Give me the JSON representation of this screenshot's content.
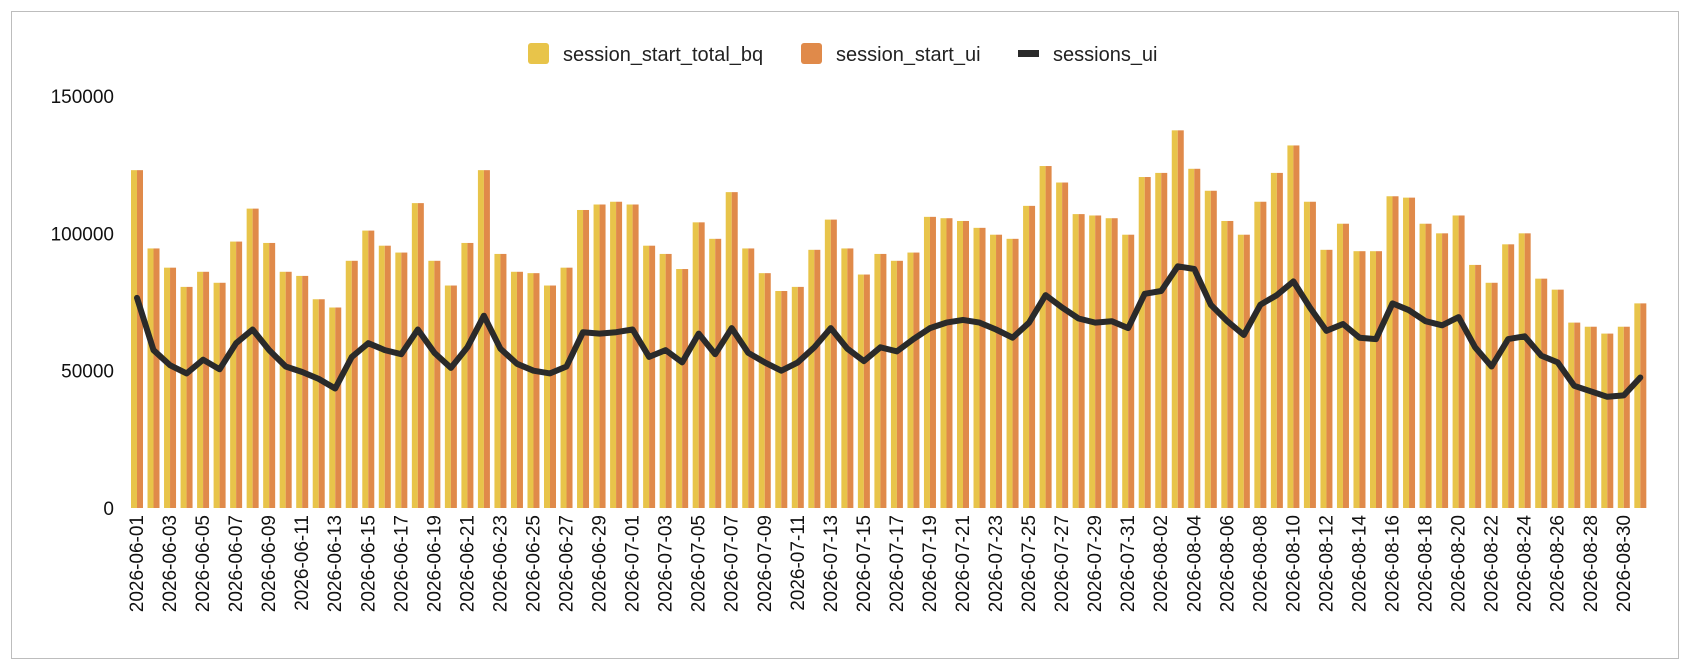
{
  "chart_data": {
    "type": "bar",
    "title": "",
    "xlabel": "",
    "ylabel": "",
    "ylim": [
      0,
      150000
    ],
    "yticks": [
      0,
      50000,
      100000,
      150000
    ],
    "grid": false,
    "legend_position": "top-center",
    "categories": [
      "2026-06-01",
      "2026-06-02",
      "2026-06-03",
      "2026-06-04",
      "2026-06-05",
      "2026-06-06",
      "2026-06-07",
      "2026-06-08",
      "2026-06-09",
      "2026-06-10",
      "2026-06-11",
      "2026-06-12",
      "2026-06-13",
      "2026-06-14",
      "2026-06-15",
      "2026-06-16",
      "2026-06-17",
      "2026-06-18",
      "2026-06-19",
      "2026-06-20",
      "2026-06-21",
      "2026-06-22",
      "2026-06-23",
      "2026-06-24",
      "2026-06-25",
      "2026-06-26",
      "2026-06-27",
      "2026-06-28",
      "2026-06-29",
      "2026-06-30",
      "2026-07-01",
      "2026-07-02",
      "2026-07-03",
      "2026-07-04",
      "2026-07-05",
      "2026-07-06",
      "2026-07-07",
      "2026-07-08",
      "2026-07-09",
      "2026-07-10",
      "2026-07-11",
      "2026-07-12",
      "2026-07-13",
      "2026-07-14",
      "2026-07-15",
      "2026-07-16",
      "2026-07-17",
      "2026-07-18",
      "2026-07-19",
      "2026-07-20",
      "2026-07-21",
      "2026-07-22",
      "2026-07-23",
      "2026-07-24",
      "2026-07-25",
      "2026-07-26",
      "2026-07-27",
      "2026-07-28",
      "2026-07-29",
      "2026-07-30",
      "2026-07-31",
      "2026-08-01",
      "2026-08-02",
      "2026-08-03",
      "2026-08-04",
      "2026-08-05",
      "2026-08-06",
      "2026-08-07",
      "2026-08-08",
      "2026-08-09",
      "2026-08-10",
      "2026-08-11",
      "2026-08-12",
      "2026-08-13",
      "2026-08-14",
      "2026-08-15",
      "2026-08-16",
      "2026-08-17",
      "2026-08-18",
      "2026-08-19",
      "2026-08-20",
      "2026-08-21",
      "2026-08-22",
      "2026-08-23",
      "2026-08-24",
      "2026-08-25",
      "2026-08-26",
      "2026-08-27",
      "2026-08-28",
      "2026-08-29",
      "2026-08-30",
      "2026-08-31"
    ],
    "tick_labels": [
      "2026-06-01",
      "2026-06-03",
      "2026-06-05",
      "2026-06-07",
      "2026-06-09",
      "2026-06-11",
      "2026-06-13",
      "2026-06-15",
      "2026-06-17",
      "2026-06-19",
      "2026-06-21",
      "2026-06-23",
      "2026-06-25",
      "2026-06-27",
      "2026-06-29",
      "2026-07-01",
      "2026-07-03",
      "2026-07-05",
      "2026-07-07",
      "2026-07-09",
      "2026-07-11",
      "2026-07-13",
      "2026-07-15",
      "2026-07-17",
      "2026-07-19",
      "2026-07-21",
      "2026-07-23",
      "2026-07-25",
      "2026-07-27",
      "2026-07-29",
      "2026-07-31",
      "2026-08-02",
      "2026-08-04",
      "2026-08-06",
      "2026-08-08",
      "2026-08-10",
      "2026-08-12",
      "2026-08-14",
      "2026-08-16",
      "2026-08-18",
      "2026-08-20",
      "2026-08-22",
      "2026-08-24",
      "2026-08-26",
      "2026-08-28",
      "2026-08-30"
    ],
    "series": [
      {
        "name": "session_start_total_bq",
        "type": "bar",
        "color": "#e8c44a",
        "values": [
          123000,
          94500,
          87500,
          80500,
          86000,
          82000,
          97000,
          109000,
          96500,
          86000,
          84500,
          76000,
          73000,
          90000,
          101000,
          95500,
          93000,
          111000,
          90000,
          81000,
          96500,
          123000,
          92500,
          86000,
          85500,
          81000,
          87500,
          108500,
          110500,
          111500,
          110500,
          95500,
          92500,
          87000,
          104000,
          98000,
          115000,
          94500,
          85500,
          79000,
          80500,
          94000,
          105000,
          94500,
          85000,
          92500,
          90000,
          93000,
          106000,
          105500,
          104500,
          102000,
          99500,
          98000,
          110000,
          124500,
          118500,
          107000,
          106500,
          105500,
          99500,
          120500,
          122000,
          137500,
          123500,
          115500,
          104500,
          99500,
          111500,
          122000,
          132000,
          111500,
          94000,
          103500,
          93500,
          93500,
          113500,
          113000,
          103500,
          100000,
          106500,
          88500,
          82000,
          96000,
          100000,
          83500,
          79500,
          67500,
          66000,
          63500,
          66000,
          74500
        ]
      },
      {
        "name": "session_start_ui",
        "type": "bar",
        "color": "#e08a4a",
        "values": [
          123000,
          94500,
          87500,
          80500,
          86000,
          82000,
          97000,
          109000,
          96500,
          86000,
          84500,
          76000,
          73000,
          90000,
          101000,
          95500,
          93000,
          111000,
          90000,
          81000,
          96500,
          123000,
          92500,
          86000,
          85500,
          81000,
          87500,
          108500,
          110500,
          111500,
          110500,
          95500,
          92500,
          87000,
          104000,
          98000,
          115000,
          94500,
          85500,
          79000,
          80500,
          94000,
          105000,
          94500,
          85000,
          92500,
          90000,
          93000,
          106000,
          105500,
          104500,
          102000,
          99500,
          98000,
          110000,
          124500,
          118500,
          107000,
          106500,
          105500,
          99500,
          120500,
          122000,
          137500,
          123500,
          115500,
          104500,
          99500,
          111500,
          122000,
          132000,
          111500,
          94000,
          103500,
          93500,
          93500,
          113500,
          113000,
          103500,
          100000,
          106500,
          88500,
          82000,
          96000,
          100000,
          83500,
          79500,
          67500,
          66000,
          63500,
          66000,
          74500
        ]
      },
      {
        "name": "sessions_ui",
        "type": "line",
        "color": "#2a2a2a",
        "values": [
          76500,
          57500,
          52000,
          49000,
          54000,
          50500,
          60000,
          65000,
          57500,
          51500,
          49500,
          47000,
          43500,
          55000,
          60000,
          57500,
          56000,
          65000,
          56500,
          51000,
          58500,
          70000,
          58000,
          52500,
          50000,
          49000,
          51500,
          64000,
          63500,
          64000,
          65000,
          55000,
          57500,
          53000,
          63500,
          56000,
          65500,
          56500,
          53000,
          50000,
          53000,
          58500,
          65500,
          58000,
          53500,
          58500,
          57000,
          61500,
          65500,
          67500,
          68500,
          67500,
          65000,
          62000,
          67500,
          77500,
          73000,
          69000,
          67500,
          68000,
          65500,
          78000,
          79000,
          88000,
          87000,
          74000,
          68000,
          63000,
          74000,
          77500,
          82500,
          73000,
          64500,
          67000,
          62000,
          61500,
          74500,
          72000,
          68000,
          66500,
          69500,
          58500,
          51500,
          61500,
          62500,
          55500,
          53000,
          44500,
          42500,
          40500,
          41000,
          47500
        ]
      }
    ]
  }
}
